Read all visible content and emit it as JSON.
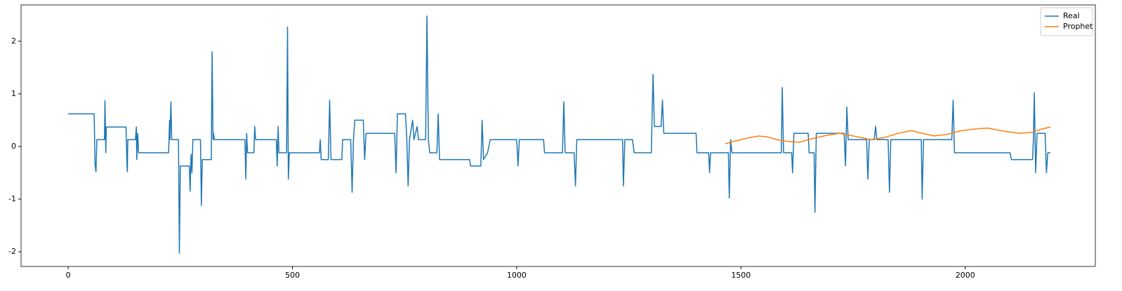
{
  "chart_data": {
    "type": "line",
    "xlim": [
      -105,
      2290
    ],
    "xticks": [
      0,
      500,
      1000,
      1500,
      2000
    ],
    "ylim": [
      -2.28,
      2.69
    ],
    "yticks": [
      -2,
      -1,
      0,
      1,
      2
    ],
    "legend": "upper right",
    "series": [
      {
        "name": "Real",
        "color": "#1f77b4",
        "x": [
          0,
          58,
          60,
          62,
          64,
          81,
          82,
          84,
          85,
          129,
          131,
          132,
          133,
          150,
          152,
          153,
          155,
          157,
          224,
          226,
          227,
          229,
          231,
          246,
          248,
          250,
          270,
          272,
          274,
          276,
          278,
          295,
          297,
          299,
          319,
          321,
          323,
          324,
          326,
          394,
          396,
          398,
          400,
          414,
          416,
          418,
          464,
          466,
          468,
          470,
          487,
          489,
          491,
          493,
          560,
          562,
          564,
          580,
          583,
          586,
          610,
          612,
          630,
          633,
          636,
          639,
          658,
          661,
          664,
          728,
          731,
          734,
          752,
          755,
          758,
          761,
          768,
          771,
          778,
          781,
          797,
          800,
          803,
          806,
          822,
          825,
          828,
          895,
          897,
          920,
          923,
          926,
          935,
          941,
          1000,
          1003,
          1006,
          1060,
          1062,
          1102,
          1105,
          1108,
          1128,
          1131,
          1134,
          1236,
          1238,
          1241,
          1258,
          1262,
          1300,
          1304,
          1307,
          1322,
          1325,
          1328,
          1400,
          1402,
          1428,
          1430,
          1432,
          1472,
          1474,
          1477,
          1480,
          1590,
          1592,
          1595,
          1613,
          1615,
          1618,
          1650,
          1652,
          1663,
          1665,
          1668,
          1730,
          1733,
          1736,
          1739,
          1780,
          1783,
          1786,
          1797,
          1800,
          1803,
          1828,
          1831,
          1834,
          1902,
          1904,
          1907,
          1970,
          1973,
          1976,
          2100,
          2103,
          2150,
          2152,
          2154,
          2157,
          2160,
          2178,
          2181,
          2184,
          2190
        ],
        "values": [
          0.62,
          0.62,
          -0.35,
          -0.48,
          0.13,
          0.13,
          0.87,
          -0.12,
          0.37,
          0.37,
          -0.35,
          -0.48,
          0.13,
          0.13,
          0.37,
          -0.25,
          0.25,
          -0.12,
          -0.12,
          0.5,
          0.13,
          0.85,
          0.13,
          0.13,
          -2.03,
          -0.37,
          -0.37,
          -0.85,
          -0.15,
          -0.5,
          0.13,
          0.13,
          -1.12,
          -0.25,
          -0.25,
          1.8,
          0.13,
          0.25,
          0.13,
          0.13,
          -0.62,
          0.25,
          -0.12,
          -0.12,
          0.38,
          0.13,
          0.13,
          -0.37,
          0.38,
          -0.12,
          -0.12,
          2.27,
          -0.62,
          -0.12,
          -0.12,
          0.13,
          -0.25,
          -0.25,
          0.88,
          -0.25,
          -0.25,
          0.13,
          0.13,
          -0.87,
          0.13,
          0.5,
          0.5,
          -0.25,
          0.25,
          0.25,
          -0.5,
          0.62,
          0.62,
          0.13,
          -0.75,
          0.13,
          0.5,
          0.13,
          0.38,
          0.13,
          0.13,
          2.48,
          0.13,
          -0.12,
          -0.12,
          0.62,
          -0.25,
          -0.25,
          -0.37,
          -0.37,
          0.5,
          -0.25,
          -0.12,
          0.13,
          0.13,
          -0.37,
          0.13,
          0.13,
          -0.12,
          -0.12,
          0.85,
          -0.12,
          -0.12,
          -0.75,
          0.13,
          0.13,
          -0.75,
          0.13,
          0.13,
          -0.12,
          -0.12,
          1.37,
          0.38,
          0.38,
          0.88,
          0.25,
          0.25,
          -0.12,
          -0.12,
          -0.5,
          -0.12,
          -0.12,
          -0.98,
          0.13,
          -0.12,
          -0.12,
          1.12,
          -0.12,
          -0.12,
          -0.5,
          0.25,
          0.25,
          -0.12,
          -0.12,
          -1.25,
          0.25,
          0.25,
          -0.37,
          0.75,
          0.13,
          0.13,
          -0.62,
          0.13,
          0.13,
          0.38,
          0.13,
          0.13,
          -0.87,
          0.13,
          0.13,
          -1.0,
          0.13,
          0.13,
          0.88,
          -0.12,
          -0.12,
          -0.25,
          -0.25,
          0.13,
          1.02,
          -0.5,
          0.25,
          0.25,
          -0.5,
          -0.12,
          -0.12
        ]
      },
      {
        "name": "Prophet",
        "color": "#ff7f0e",
        "x": [
          1465,
          1480,
          1500,
          1520,
          1540,
          1560,
          1580,
          1600,
          1630,
          1660,
          1690,
          1720,
          1750,
          1790,
          1820,
          1850,
          1880,
          1910,
          1930,
          1960,
          1990,
          2020,
          2050,
          2080,
          2120,
          2150,
          2170,
          2190
        ],
        "values": [
          0.05,
          0.09,
          0.13,
          0.17,
          0.2,
          0.18,
          0.13,
          0.1,
          0.08,
          0.15,
          0.21,
          0.25,
          0.2,
          0.13,
          0.17,
          0.25,
          0.3,
          0.24,
          0.2,
          0.23,
          0.3,
          0.33,
          0.35,
          0.3,
          0.25,
          0.27,
          0.33,
          0.37
        ]
      }
    ]
  }
}
